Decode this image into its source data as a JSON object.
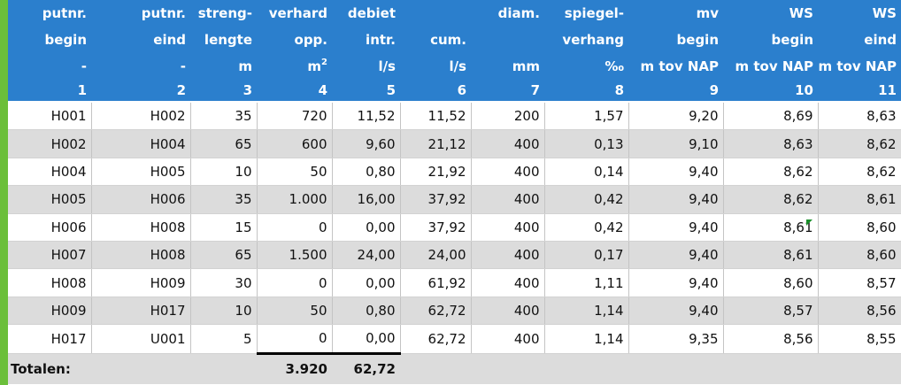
{
  "header": {
    "row1": [
      "putnr.",
      "putnr.",
      "streng-",
      "verhard",
      "debiet",
      "",
      "diam.",
      "spiegel-",
      "mv",
      "WS",
      "WS"
    ],
    "row2": [
      "begin",
      "eind",
      "lengte",
      "opp.",
      "intr.",
      "cum.",
      "",
      "verhang",
      "begin",
      "begin",
      "eind"
    ],
    "row3": [
      "-",
      "-",
      "m",
      "m",
      "l/s",
      "l/s",
      "mm",
      "‰",
      "m tov NAP",
      "m tov NAP",
      "m tov NAP"
    ],
    "m2_sup": "2",
    "numbers": [
      "1",
      "2",
      "3",
      "4",
      "5",
      "6",
      "7",
      "8",
      "9",
      "10",
      "11"
    ]
  },
  "rows": [
    [
      "H001",
      "H002",
      "35",
      "720",
      "11,52",
      "11,52",
      "200",
      "1,57",
      "9,20",
      "8,69",
      "8,63"
    ],
    [
      "H002",
      "H004",
      "65",
      "600",
      "9,60",
      "21,12",
      "400",
      "0,13",
      "9,10",
      "8,63",
      "8,62"
    ],
    [
      "H004",
      "H005",
      "10",
      "50",
      "0,80",
      "21,92",
      "400",
      "0,14",
      "9,40",
      "8,62",
      "8,62"
    ],
    [
      "H005",
      "H006",
      "35",
      "1.000",
      "16,00",
      "37,92",
      "400",
      "0,42",
      "9,40",
      "8,62",
      "8,61"
    ],
    [
      "H006",
      "H008",
      "15",
      "0",
      "0,00",
      "37,92",
      "400",
      "0,42",
      "9,40",
      "8,61",
      "8,60"
    ],
    [
      "H007",
      "H008",
      "65",
      "1.500",
      "24,00",
      "24,00",
      "400",
      "0,17",
      "9,40",
      "8,61",
      "8,60"
    ],
    [
      "H008",
      "H009",
      "30",
      "0",
      "0,00",
      "61,92",
      "400",
      "1,11",
      "9,40",
      "8,60",
      "8,57"
    ],
    [
      "H009",
      "H017",
      "10",
      "50",
      "0,80",
      "62,72",
      "400",
      "1,14",
      "9,40",
      "8,57",
      "8,56"
    ],
    [
      "H017",
      "U001",
      "5",
      "0",
      "0,00",
      "62,72",
      "400",
      "1,14",
      "9,35",
      "8,56",
      "8,55"
    ]
  ],
  "totals": {
    "label": "Totalen:",
    "verhard_opp": "3.920",
    "debiet_intr": "62,72"
  },
  "colors": {
    "header_bg": "#2b7fcd",
    "stripe_bg": "#dcdcdc",
    "left_bar": "#6bbf3a",
    "comment_marker": "#1a8f2a"
  }
}
